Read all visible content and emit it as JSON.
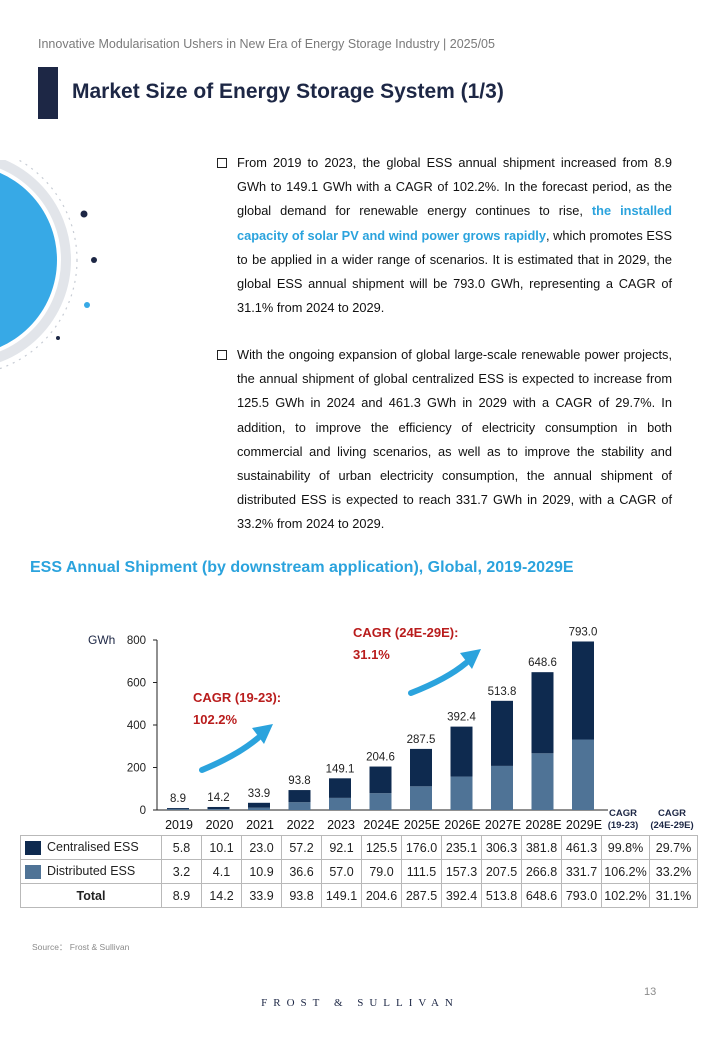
{
  "header": {
    "report_title": "Innovative Modularisation Ushers in New Era of Energy Storage Industry | 2025/05",
    "page_title": "Market Size of Energy Storage System (1/3)"
  },
  "bullets": [
    {
      "pre": "From 2019 to 2023, the global ESS annual shipment increased from 8.9 GWh to 149.1 GWh with a CAGR of 102.2%. In the forecast period, as the global demand for renewable energy continues to rise, ",
      "highlight": "the installed capacity of solar PV and wind power grows rapidly",
      "post": ", which promotes ESS to be applied in a wider range of scenarios. It is estimated that in 2029, the global ESS annual shipment will be 793.0 GWh, representing a CAGR of 31.1% from 2024 to 2029."
    },
    {
      "pre": "With the ongoing expansion of global large-scale renewable power projects, the annual shipment of global centralized ESS is expected to increase from 125.5 GWh in 2024 and 461.3 GWh in 2029 with a CAGR of 29.7%. In addition, to improve the efficiency of electricity consumption in both commercial and living scenarios, as well as to improve the stability and sustainability of urban electricity consumption, the annual shipment of distributed ESS is expected to reach 331.7 GWh in 2029, with a CAGR of 33.2% from 2024 to 2029.",
      "highlight": "",
      "post": ""
    }
  ],
  "chart_data": {
    "type": "bar",
    "stacked": true,
    "title": "ESS Annual Shipment (by downstream application), Global, 2019-2029E",
    "ylabel": "GWh",
    "ylim": [
      0,
      800
    ],
    "yticks": [
      0,
      200,
      400,
      600,
      800
    ],
    "categories": [
      "2019",
      "2020",
      "2021",
      "2022",
      "2023",
      "2024E",
      "2025E",
      "2026E",
      "2027E",
      "2028E",
      "2029E"
    ],
    "series": [
      {
        "name": "Centralised ESS",
        "color": "#0e2a4f",
        "values": [
          5.8,
          10.1,
          23.0,
          57.2,
          92.1,
          125.5,
          176.0,
          235.1,
          306.3,
          381.8,
          461.3
        ],
        "cagr": [
          "99.8%",
          "29.7%"
        ]
      },
      {
        "name": "Distributed ESS",
        "color": "#4f7396",
        "values": [
          3.2,
          4.1,
          10.9,
          36.6,
          57.0,
          79.0,
          111.5,
          157.3,
          207.5,
          266.8,
          331.7
        ],
        "cagr": [
          "106.2%",
          "33.2%"
        ]
      }
    ],
    "totals_label": "Total",
    "totals": [
      8.9,
      14.2,
      33.9,
      93.8,
      149.1,
      204.6,
      287.5,
      392.4,
      513.8,
      648.6,
      793.0
    ],
    "totals_cagr": [
      "102.2%",
      "31.1%"
    ],
    "cagr_headers": [
      [
        "CAGR",
        "(19-23)"
      ],
      [
        "CAGR",
        "(24E-29E)"
      ]
    ],
    "annotations": [
      {
        "label": "CAGR (19-23):",
        "value": "102.2%"
      },
      {
        "label": "CAGR (24E-29E):",
        "value": "31.1%"
      }
    ],
    "annotation_color": "#b91c1c",
    "arrow_color": "#2ba3dd"
  },
  "source": "Source： Frost & Sullivan",
  "page_number": "13",
  "footer_brand": "FROST & SULLIVAN"
}
